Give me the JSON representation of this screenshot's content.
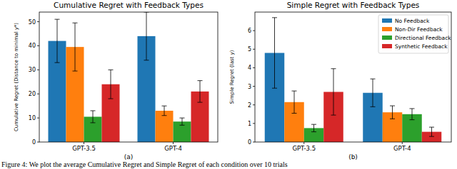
{
  "chart_data": [
    {
      "type": "bar",
      "title": "Cumulative Regret with Feedback Types",
      "y_label": "Cumulative Regret (Distance to minimal y*)",
      "panel_label": "(a)",
      "categories": [
        "GPT-3.5",
        "GPT-4"
      ],
      "series": [
        {
          "name": "No Feedback",
          "color": "#1f77b4",
          "values": [
            42,
            44
          ],
          "errors": [
            9,
            10
          ]
        },
        {
          "name": "Non-Dir Feedback",
          "color": "#ff7f0e",
          "values": [
            39.5,
            13
          ],
          "errors": [
            10,
            2
          ]
        },
        {
          "name": "Directional Feedback",
          "color": "#2ca02c",
          "values": [
            10.5,
            8.5
          ],
          "errors": [
            2.5,
            1.5
          ]
        },
        {
          "name": "Synthetic Feedback",
          "color": "#d62728",
          "values": [
            24,
            21
          ],
          "errors": [
            6,
            4.5
          ]
        }
      ],
      "ylim": [
        0,
        54
      ],
      "yticks": [
        0,
        10,
        20,
        30,
        40,
        50
      ]
    },
    {
      "type": "bar",
      "title": "Simple Regret with Feedback Types",
      "y_label": "Simple Regret (last y)",
      "panel_label": "(b)",
      "categories": [
        "GPT-3.5",
        "GPT-4"
      ],
      "series": [
        {
          "name": "No Feedback",
          "color": "#1f77b4",
          "values": [
            4.8,
            2.65
          ],
          "errors": [
            1.9,
            0.75
          ]
        },
        {
          "name": "Non-Dir Feedback",
          "color": "#ff7f0e",
          "values": [
            2.15,
            1.6
          ],
          "errors": [
            0.6,
            0.35
          ]
        },
        {
          "name": "Directional Feedback",
          "color": "#2ca02c",
          "values": [
            0.75,
            1.5
          ],
          "errors": [
            0.2,
            0.3
          ]
        },
        {
          "name": "Synthetic Feedback",
          "color": "#d62728",
          "values": [
            2.7,
            0.55
          ],
          "errors": [
            1.25,
            0.25
          ]
        }
      ],
      "ylim": [
        0,
        7
      ],
      "yticks": [
        0,
        1,
        2,
        3,
        4,
        5,
        6
      ],
      "legend": "upper right"
    }
  ],
  "caption": "Figure 4: We plot the average Cumulative Regret and Simple Regret of each condition over 10 trials"
}
